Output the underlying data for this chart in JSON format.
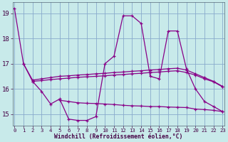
{
  "bg_color": "#c8eaea",
  "line_color": "#880088",
  "grid_color": "#88aacc",
  "x_min": -0.2,
  "x_max": 23.2,
  "y_min": 14.55,
  "y_max": 19.45,
  "yticks": [
    15,
    16,
    17,
    18,
    19
  ],
  "xticks": [
    0,
    1,
    2,
    3,
    4,
    5,
    6,
    7,
    8,
    9,
    10,
    11,
    12,
    13,
    14,
    15,
    16,
    17,
    18,
    19,
    20,
    21,
    22,
    23
  ],
  "xlabel": "Windchill (Refroidissement éolien,°C)",
  "s1_x": [
    0,
    1,
    2,
    3,
    4,
    5,
    6,
    7,
    8,
    9,
    10,
    11,
    12,
    13,
    14,
    15,
    16,
    17,
    18,
    19,
    20,
    21,
    22,
    23
  ],
  "s1_y": [
    19.2,
    17.0,
    16.3,
    15.9,
    15.4,
    15.6,
    14.8,
    14.75,
    14.75,
    14.9,
    17.0,
    17.3,
    18.9,
    18.9,
    18.6,
    16.5,
    16.4,
    18.3,
    18.3,
    16.8,
    16.0,
    15.5,
    15.3,
    15.1
  ],
  "s2_x": [
    1,
    2,
    3,
    4,
    5,
    6,
    7,
    8,
    9,
    10,
    11,
    12,
    13,
    14,
    15,
    16,
    17,
    18,
    19,
    20,
    21,
    22,
    23
  ],
  "s2_y": [
    17.0,
    16.35,
    16.4,
    16.45,
    16.5,
    16.52,
    16.55,
    16.57,
    16.6,
    16.62,
    16.65,
    16.67,
    16.7,
    16.72,
    16.75,
    16.77,
    16.8,
    16.82,
    16.75,
    16.6,
    16.45,
    16.3,
    16.1
  ],
  "s3_x": [
    2,
    3,
    4,
    5,
    6,
    7,
    8,
    9,
    10,
    11,
    12,
    13,
    14,
    15,
    16,
    17,
    18,
    19,
    20,
    21,
    22,
    23
  ],
  "s3_y": [
    16.3,
    16.33,
    16.37,
    16.4,
    16.43,
    16.46,
    16.48,
    16.5,
    16.52,
    16.55,
    16.57,
    16.6,
    16.62,
    16.65,
    16.67,
    16.7,
    16.72,
    16.65,
    16.55,
    16.4,
    16.28,
    16.08
  ],
  "s4_x": [
    5,
    6,
    7,
    8,
    9,
    10,
    11,
    12,
    13,
    14,
    15,
    16,
    17,
    18,
    19,
    20,
    21,
    22,
    23
  ],
  "s4_y": [
    15.55,
    15.5,
    15.45,
    15.43,
    15.42,
    15.4,
    15.38,
    15.35,
    15.33,
    15.32,
    15.3,
    15.3,
    15.28,
    15.27,
    15.26,
    15.2,
    15.18,
    15.15,
    15.1
  ]
}
